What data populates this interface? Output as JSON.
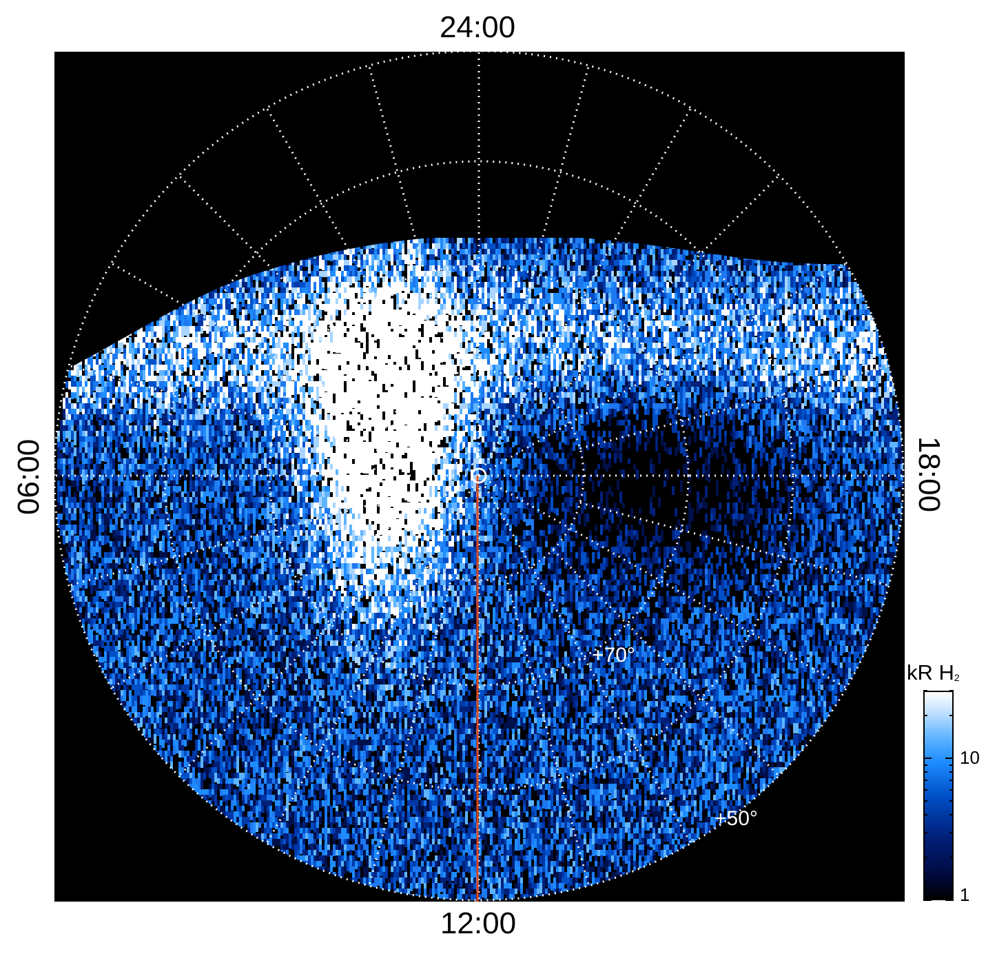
{
  "local_time_labels": {
    "top": "24:00",
    "bottom": "12:00",
    "left": "06:00",
    "right": "18:00"
  },
  "latitude_labels": [
    "+70°",
    "+50°"
  ],
  "colorbar": {
    "title": "kR H",
    "title_subscript": "2",
    "tick_labels": [
      "10",
      "1"
    ],
    "scale": "log",
    "range": [
      1,
      30
    ]
  },
  "colors": {
    "background": "#000000",
    "grid": "#ffffff",
    "meridian_line": "#e0491c",
    "emission_low": "#00207a",
    "emission_high": "#ffffff"
  }
}
